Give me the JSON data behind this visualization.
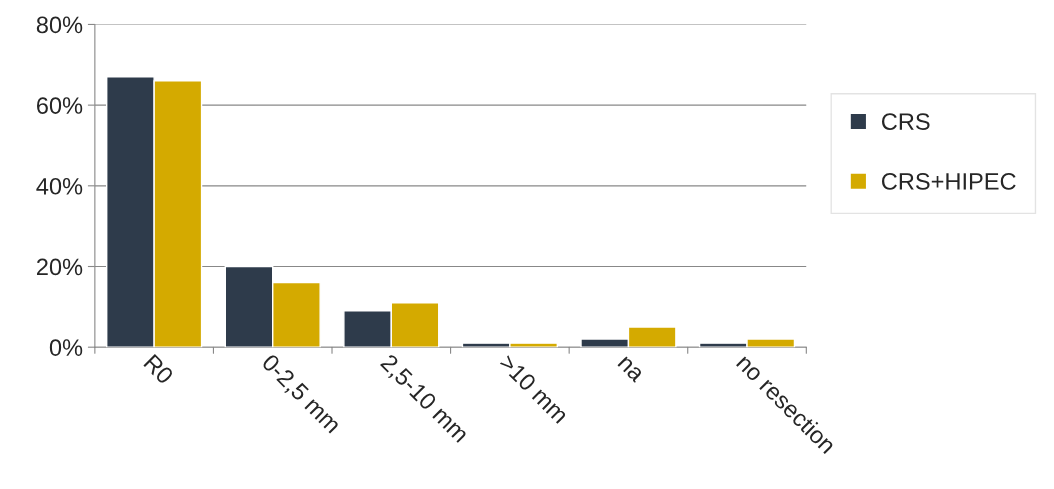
{
  "chart_data": {
    "type": "bar",
    "categories": [
      "R0",
      "0-2,5 mm",
      "2,5-10 mm",
      ">10 mm",
      "na",
      "no resection"
    ],
    "series": [
      {
        "name": "CRS",
        "color": "#2e3b4b",
        "values": [
          67,
          20,
          9,
          1,
          2,
          1
        ]
      },
      {
        "name": "CRS+HIPEC",
        "color": "#d4aa00",
        "values": [
          66,
          16,
          11,
          1,
          5,
          2
        ]
      }
    ],
    "ylim": [
      0,
      80
    ],
    "yticks": [
      {
        "value": 0,
        "label": "0%"
      },
      {
        "value": 20,
        "label": "20%"
      },
      {
        "value": 40,
        "label": "40%"
      },
      {
        "value": 60,
        "label": "60%"
      },
      {
        "value": 80,
        "label": "80%"
      }
    ],
    "grid": "y",
    "legend": "right"
  }
}
